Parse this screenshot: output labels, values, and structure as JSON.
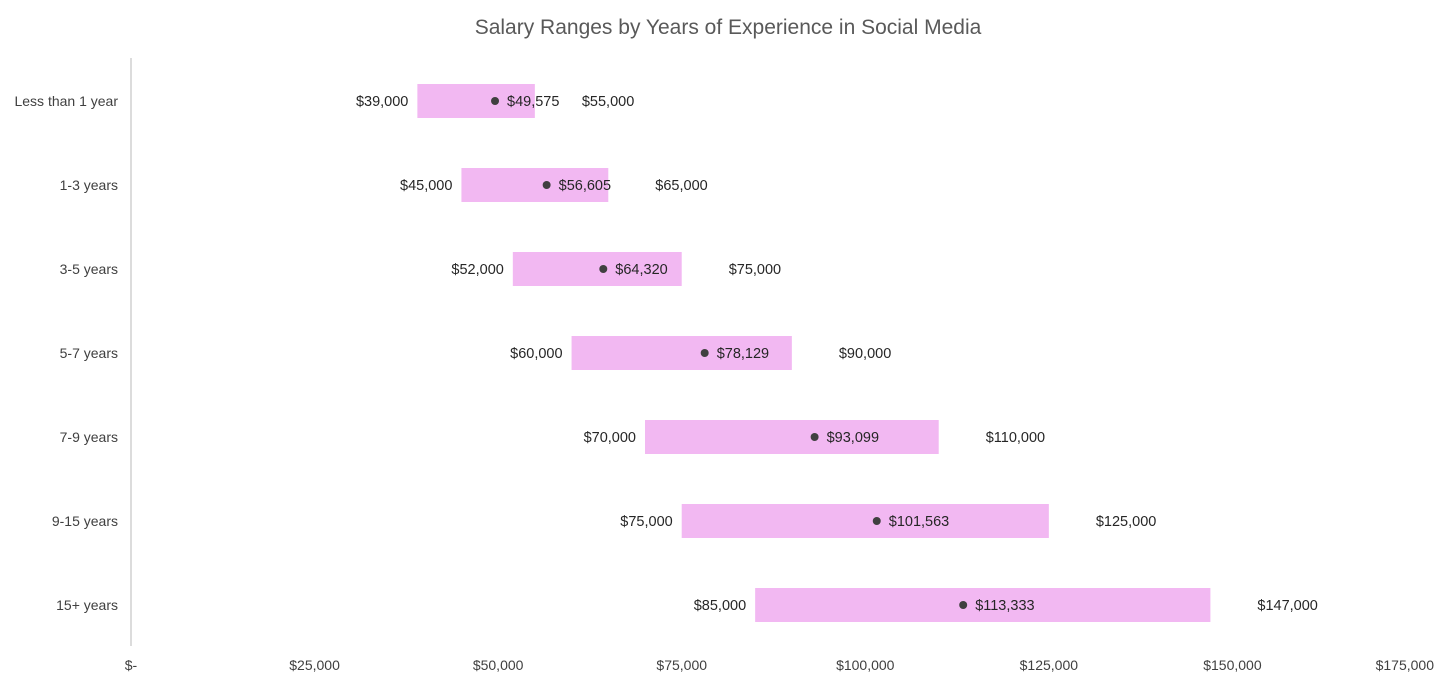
{
  "chart_data": {
    "type": "bar",
    "subtype": "floating-range-with-average-marker",
    "title": "Salary Ranges by Years of Experience in Social Media",
    "xlabel": "",
    "ylabel": "",
    "xlim": [
      0,
      175000
    ],
    "x_ticks": [
      0,
      25000,
      50000,
      75000,
      100000,
      125000,
      150000,
      175000
    ],
    "x_tick_labels": [
      "$-",
      "$25,000",
      "$50,000",
      "$75,000",
      "$100,000",
      "$125,000",
      "$150,000",
      "$175,000"
    ],
    "categories": [
      "Less than 1 year",
      "1-3 years",
      "3-5 years",
      "5-7 years",
      "7-9 years",
      "9-15 years",
      "15+ years"
    ],
    "series": [
      {
        "name": "Minimum",
        "values": [
          39000,
          45000,
          52000,
          60000,
          70000,
          75000,
          85000
        ],
        "labels": [
          "$39,000",
          "$45,000",
          "$52,000",
          "$60,000",
          "$70,000",
          "$75,000",
          "$85,000"
        ]
      },
      {
        "name": "Average",
        "values": [
          49575,
          56605,
          64320,
          78129,
          93099,
          101563,
          113333
        ],
        "labels": [
          "$49,575",
          "$56,605",
          "$64,320",
          "$78,129",
          "$93,099",
          "$101,563",
          "$113,333"
        ]
      },
      {
        "name": "Maximum",
        "values": [
          55000,
          65000,
          75000,
          90000,
          110000,
          125000,
          147000
        ],
        "labels": [
          "$55,000",
          "$65,000",
          "$75,000",
          "$90,000",
          "$110,000",
          "$125,000",
          "$147,000"
        ]
      }
    ],
    "grid": false,
    "legend": "none",
    "colors": {
      "bar": "#f2b8f2",
      "marker": "#404040",
      "axis": "#d0d0d0",
      "title": "#595959",
      "text": "#262626"
    }
  }
}
